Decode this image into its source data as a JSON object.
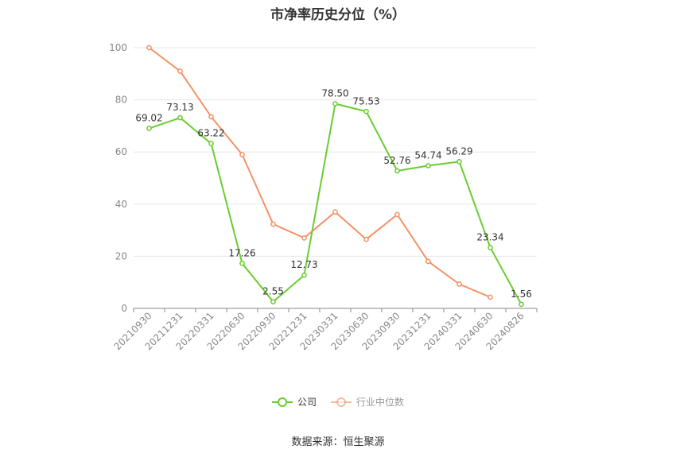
{
  "chart_data": {
    "type": "line",
    "title": "市净率历史分位（%）",
    "categories": [
      "20210930",
      "20211231",
      "20220331",
      "20220630",
      "20220930",
      "20221231",
      "20230331",
      "20230630",
      "20230930",
      "20231231",
      "20240331",
      "20240630",
      "20240826"
    ],
    "series": [
      {
        "name": "公司",
        "color": "#6acc30",
        "values": [
          69.02,
          73.13,
          63.22,
          17.26,
          2.55,
          12.73,
          78.5,
          75.53,
          52.76,
          54.74,
          56.29,
          23.34,
          1.56
        ],
        "labels": [
          "69.02",
          "73.13",
          "63.22",
          "17.26",
          "2.55",
          "12.73",
          "78.50",
          "75.53",
          "52.76",
          "54.74",
          "56.29",
          "23.34",
          "1.56"
        ]
      },
      {
        "name": "行业中位数",
        "color": "#f39267",
        "values": [
          100,
          91,
          73.5,
          59,
          32.3,
          27,
          37,
          26.5,
          36,
          18,
          9.3,
          4.3,
          null
        ]
      }
    ],
    "ylim": [
      0,
      100
    ],
    "yticks": [
      0,
      20,
      40,
      60,
      80,
      100
    ],
    "grid": true,
    "legend": "bottom-center"
  },
  "source": "数据来源：恒生聚源"
}
